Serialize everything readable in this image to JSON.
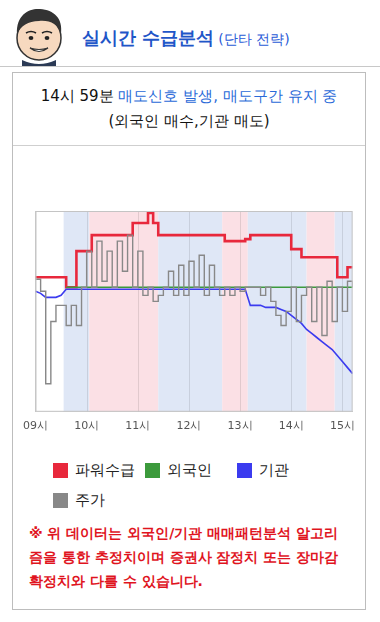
{
  "header": {
    "title": "실시간 수급분석",
    "subtitle": "(단타 전략)"
  },
  "signal": {
    "time": "14시 59분",
    "message": "매도신호 발생, 매도구간 유지 중",
    "detail": "(외국인 매수,기관 매도)"
  },
  "chart_data": {
    "type": "line",
    "x": [
      9.0,
      9.1,
      9.2,
      9.3,
      9.4,
      9.5,
      9.6,
      9.7,
      9.8,
      9.9,
      10.0,
      10.1,
      10.2,
      10.3,
      10.4,
      10.5,
      10.6,
      10.7,
      10.8,
      10.9,
      11.0,
      11.1,
      11.2,
      11.3,
      11.4,
      11.5,
      11.6,
      11.7,
      11.8,
      11.9,
      12.0,
      12.1,
      12.2,
      12.3,
      12.4,
      12.5,
      12.6,
      12.7,
      12.8,
      12.9,
      13.0,
      13.1,
      13.2,
      13.3,
      13.4,
      13.5,
      13.6,
      13.7,
      13.8,
      13.9,
      14.0,
      14.1,
      14.2,
      14.3,
      14.4,
      14.5,
      14.6,
      14.7,
      14.8,
      14.9,
      15.0,
      15.1,
      15.2
    ],
    "xlim": [
      9.0,
      15.2
    ],
    "xticks": [
      {
        "value": 9,
        "label": "09시"
      },
      {
        "value": 10,
        "label": "10시"
      },
      {
        "value": 11,
        "label": "11시"
      },
      {
        "value": 12,
        "label": "12시"
      },
      {
        "value": 13,
        "label": "13시"
      },
      {
        "value": 14,
        "label": "14시"
      },
      {
        "value": 15,
        "label": "15시"
      }
    ],
    "ylim": [
      0,
      100
    ],
    "yticks": [],
    "tick_labels": "x",
    "grid": true,
    "legend": "bottom",
    "bands": [
      {
        "from": 9.0,
        "to": 9.55,
        "color": "#ffffff"
      },
      {
        "from": 9.55,
        "to": 10.05,
        "color": "#dfe7f6"
      },
      {
        "from": 10.05,
        "to": 11.4,
        "color": "#fbe0e5"
      },
      {
        "from": 11.4,
        "to": 12.65,
        "color": "#dfe7f6"
      },
      {
        "from": 12.65,
        "to": 13.15,
        "color": "#fbe0e5"
      },
      {
        "from": 13.15,
        "to": 14.3,
        "color": "#dfe7f6"
      },
      {
        "from": 14.3,
        "to": 14.85,
        "color": "#fbe0e5"
      },
      {
        "from": 14.85,
        "to": 15.2,
        "color": "#dfe7f6"
      }
    ],
    "series": [
      {
        "name": "파워수급",
        "color": "#e8283c",
        "line_style": "stepped",
        "values": [
          67,
          67,
          67,
          67,
          67,
          67,
          62,
          62,
          80,
          80,
          80,
          88,
          88,
          88,
          88,
          88,
          88,
          88,
          88,
          94,
          94,
          94,
          99,
          94,
          88,
          88,
          88,
          88,
          88,
          88,
          88,
          88,
          88,
          88,
          88,
          88,
          88,
          85,
          85,
          85,
          85,
          86,
          88,
          88,
          88,
          88,
          88,
          88,
          88,
          88,
          81,
          81,
          77,
          77,
          77,
          77,
          77,
          77,
          77,
          67,
          67,
          72,
          72
        ]
      },
      {
        "name": "외국인",
        "color": "#3c9a3c",
        "line_style": "solid",
        "values": [
          null,
          null,
          null,
          null,
          null,
          null,
          62,
          62,
          62,
          62,
          62,
          62,
          62,
          62,
          62,
          62,
          62,
          62,
          62,
          62,
          62,
          62,
          62,
          62,
          62,
          62,
          62,
          62,
          62,
          62,
          62,
          62,
          62,
          62,
          62,
          62,
          62,
          62,
          62,
          62,
          62,
          62,
          62,
          62,
          62,
          62,
          62,
          62,
          62,
          62,
          62,
          62,
          62,
          62,
          62,
          62,
          62,
          62,
          62,
          62,
          62,
          62,
          62
        ]
      },
      {
        "name": "기관",
        "color": "#3b3bef",
        "line_style": "solid",
        "values": [
          60,
          59,
          57,
          57,
          57,
          58,
          61,
          61,
          61,
          61,
          61,
          61,
          61,
          61,
          61,
          61,
          61,
          61,
          61,
          61,
          61,
          61,
          61,
          61,
          61,
          61,
          61,
          61,
          61,
          61,
          61,
          61,
          61,
          61,
          61,
          61,
          61,
          61,
          61,
          61,
          61,
          61,
          53,
          53,
          53,
          52,
          52,
          52,
          51,
          50,
          48,
          46,
          44,
          41,
          39,
          37,
          35,
          33,
          31,
          28,
          25,
          22,
          19
        ]
      },
      {
        "name": "주가",
        "color": "#888888",
        "line_style": "stepped",
        "values": [
          66,
          60,
          14,
          45,
          53,
          53,
          43,
          53,
          43,
          62,
          80,
          62,
          85,
          65,
          80,
          62,
          85,
          70,
          88,
          62,
          80,
          58,
          62,
          55,
          58,
          62,
          70,
          58,
          73,
          58,
          75,
          62,
          78,
          58,
          73,
          62,
          58,
          62,
          58,
          62,
          60,
          62,
          62,
          62,
          58,
          62,
          55,
          48,
          43,
          50,
          62,
          45,
          58,
          62,
          45,
          62,
          38,
          65,
          45,
          62,
          50,
          65,
          62
        ]
      }
    ]
  },
  "note": "※ 위 데이터는 외국인/기관 매매패턴분석 알고리즘을 통한 추정치이며 증권사 잠정치 또는 장마감 확정치와 다를 수 있습니다."
}
